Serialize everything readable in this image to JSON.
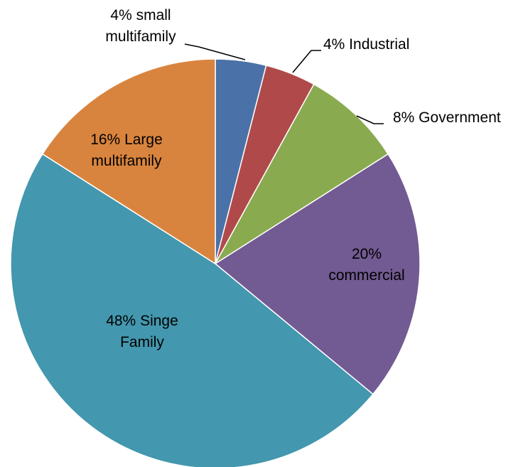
{
  "chart_data": {
    "type": "pie",
    "title": "",
    "slices": [
      {
        "label": "4% small multifamily",
        "lines": [
          "4% small",
          "multifamily"
        ],
        "value": 4,
        "color": "#4a72a8"
      },
      {
        "label": "4% Industrial",
        "lines": [
          "4% Industrial"
        ],
        "value": 4,
        "color": "#b04a4a"
      },
      {
        "label": "8% Government",
        "lines": [
          "8% Government"
        ],
        "value": 8,
        "color": "#8aaa50"
      },
      {
        "label": "20% commercial",
        "lines": [
          "20%",
          "commercial"
        ],
        "value": 20,
        "color": "#725a92"
      },
      {
        "label": "48% Singe Family",
        "lines": [
          "48% Singe",
          "Family"
        ],
        "value": 48,
        "color": "#4397ae"
      },
      {
        "label": "16% Large multifamily",
        "lines": [
          "16% Large",
          "multifamily"
        ],
        "value": 16,
        "color": "#d9843e"
      }
    ],
    "start_angle": "12 o'clock",
    "direction": "clockwise",
    "legend": "none"
  }
}
